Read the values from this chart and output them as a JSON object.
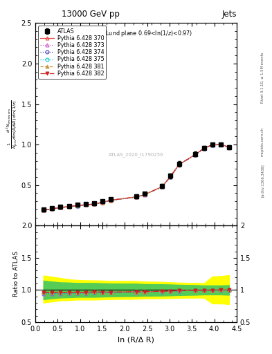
{
  "title_top": "13000 GeV pp",
  "title_right": "Jets",
  "plot_label": "ln(R/Δ R) (Lund plane 0.69<ln(1/z)<0.97)",
  "watermark": "ATLAS_2020_I1790256",
  "xlabel": "ln (R/Δ R)",
  "ylabel_ratio": "Ratio to ATLAS",
  "rivet_label": "Rivet 3.1.10, ≥ 1.5M events",
  "arxiv_label": "[arXiv:1306.3436]",
  "mcplots_label": "mcplots.cern.ch",
  "x_data": [
    0.18,
    0.37,
    0.56,
    0.75,
    0.94,
    1.13,
    1.32,
    1.5,
    1.69,
    2.26,
    2.45,
    2.83,
    3.02,
    3.21,
    3.58,
    3.77,
    3.96,
    4.15,
    4.33
  ],
  "atlas_y": [
    0.198,
    0.216,
    0.235,
    0.245,
    0.258,
    0.268,
    0.275,
    0.298,
    0.325,
    0.365,
    0.395,
    0.49,
    0.615,
    0.76,
    0.885,
    0.96,
    1.0,
    1.0,
    0.97
  ],
  "atlas_yerr": [
    0.012,
    0.01,
    0.01,
    0.01,
    0.01,
    0.01,
    0.01,
    0.012,
    0.015,
    0.02,
    0.02,
    0.025,
    0.03,
    0.035,
    0.03,
    0.025,
    0.02,
    0.02,
    0.025
  ],
  "pythia_370_y": [
    0.19,
    0.207,
    0.225,
    0.235,
    0.248,
    0.258,
    0.267,
    0.288,
    0.314,
    0.355,
    0.385,
    0.48,
    0.606,
    0.753,
    0.879,
    0.955,
    0.998,
    1.0,
    0.969
  ],
  "pythia_373_y": [
    0.187,
    0.204,
    0.222,
    0.232,
    0.245,
    0.255,
    0.264,
    0.285,
    0.311,
    0.352,
    0.382,
    0.477,
    0.603,
    0.75,
    0.876,
    0.952,
    0.995,
    0.997,
    0.966
  ],
  "pythia_374_y": [
    0.188,
    0.205,
    0.223,
    0.233,
    0.246,
    0.256,
    0.265,
    0.286,
    0.312,
    0.353,
    0.383,
    0.478,
    0.604,
    0.751,
    0.877,
    0.953,
    0.996,
    0.998,
    0.967
  ],
  "pythia_375_y": [
    0.188,
    0.205,
    0.223,
    0.233,
    0.246,
    0.256,
    0.265,
    0.286,
    0.312,
    0.353,
    0.383,
    0.478,
    0.604,
    0.751,
    0.877,
    0.953,
    0.996,
    0.998,
    0.967
  ],
  "pythia_381_y": [
    0.19,
    0.207,
    0.225,
    0.235,
    0.248,
    0.258,
    0.267,
    0.288,
    0.314,
    0.355,
    0.385,
    0.48,
    0.606,
    0.753,
    0.879,
    0.955,
    0.998,
    1.0,
    0.969
  ],
  "pythia_382_y": [
    0.19,
    0.207,
    0.225,
    0.235,
    0.248,
    0.258,
    0.267,
    0.288,
    0.314,
    0.355,
    0.385,
    0.48,
    0.606,
    0.753,
    0.879,
    0.955,
    0.998,
    1.0,
    0.969
  ],
  "yellow_band_lo": [
    0.805,
    0.82,
    0.838,
    0.842,
    0.85,
    0.85,
    0.85,
    0.855,
    0.858,
    0.862,
    0.868,
    0.87,
    0.872,
    0.878,
    0.88,
    0.88,
    0.79,
    0.79,
    0.78
  ],
  "yellow_band_hi": [
    1.225,
    1.205,
    1.185,
    1.165,
    1.155,
    1.15,
    1.148,
    1.145,
    1.14,
    1.138,
    1.13,
    1.125,
    1.12,
    1.112,
    1.108,
    1.105,
    1.21,
    1.215,
    1.23
  ],
  "green_band_lo": [
    0.855,
    0.87,
    0.882,
    0.886,
    0.892,
    0.892,
    0.892,
    0.896,
    0.9,
    0.905,
    0.91,
    0.912,
    0.915,
    0.92,
    0.925,
    0.93,
    0.93,
    0.93,
    0.925
  ],
  "green_band_hi": [
    1.145,
    1.13,
    1.118,
    1.114,
    1.108,
    1.108,
    1.108,
    1.104,
    1.1,
    1.098,
    1.09,
    1.088,
    1.085,
    1.08,
    1.075,
    1.07,
    1.07,
    1.07,
    1.075
  ],
  "color_370": "#e8443a",
  "color_373": "#cc55cc",
  "color_374": "#4444bb",
  "color_375": "#00cccc",
  "color_381": "#cc9944",
  "color_382": "#cc2222",
  "xlim": [
    0,
    4.5
  ],
  "ylim_main": [
    0.0,
    2.5
  ],
  "ylim_ratio": [
    0.5,
    2.0
  ]
}
